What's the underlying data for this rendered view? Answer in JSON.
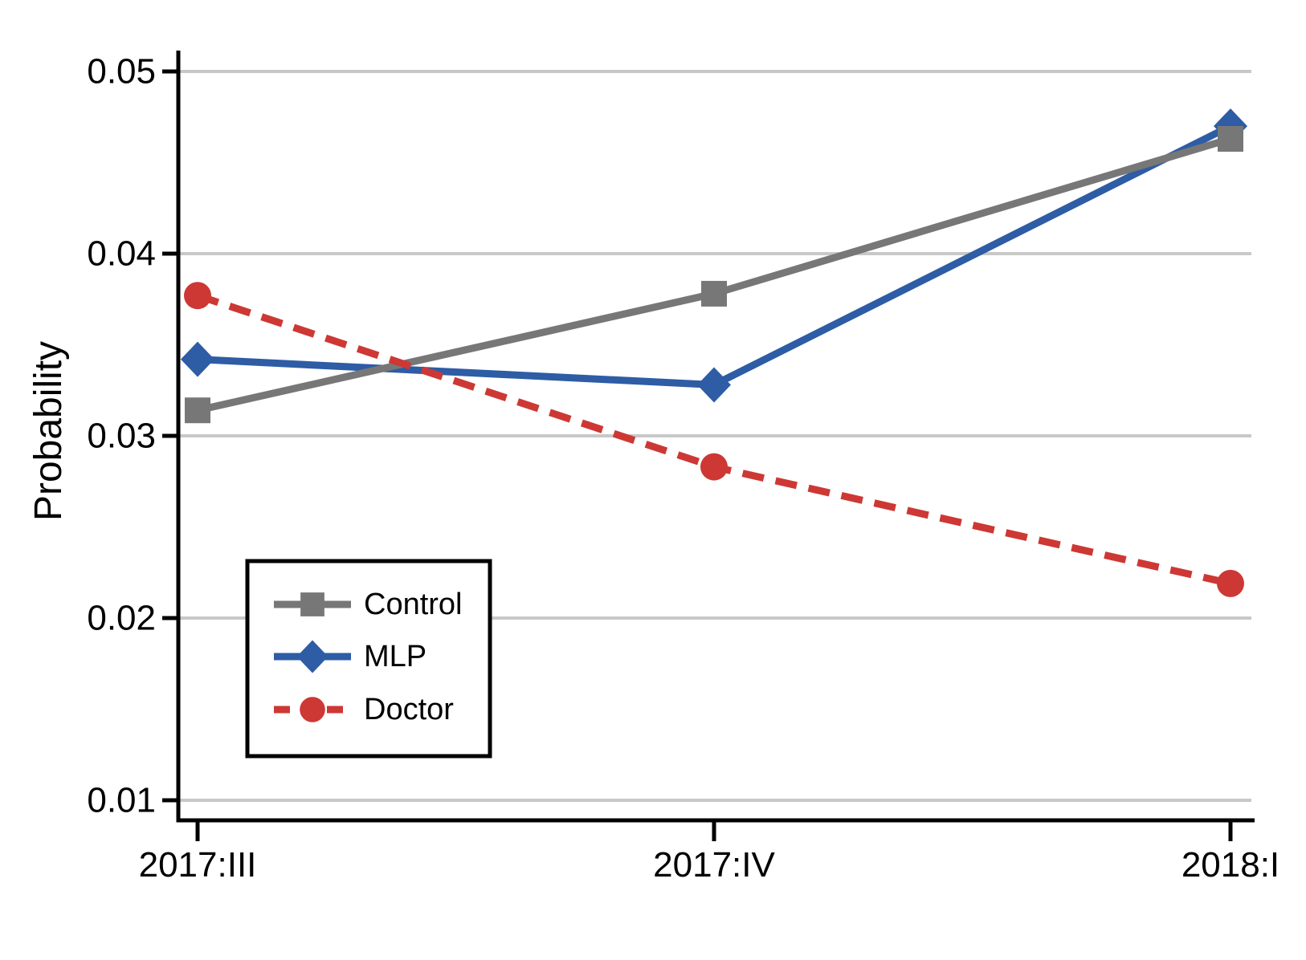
{
  "chart_data": {
    "type": "line",
    "title": "",
    "xlabel": "",
    "ylabel": "Probability",
    "categories": [
      "2017:III",
      "2017:IV",
      "2018:I"
    ],
    "series": [
      {
        "name": "Control",
        "values": [
          0.0314,
          0.0378,
          0.0463
        ],
        "color": "#777777",
        "marker": "square",
        "line_style": "solid"
      },
      {
        "name": "MLP",
        "values": [
          0.0342,
          0.0328,
          0.047
        ],
        "color": "#2e5ca5",
        "marker": "diamond",
        "line_style": "solid"
      },
      {
        "name": "Doctor",
        "values": [
          0.0377,
          0.0283,
          0.0219
        ],
        "color": "#cd3834",
        "marker": "circle",
        "line_style": "dashed"
      }
    ],
    "yticks": [
      0.01,
      0.02,
      0.03,
      0.04,
      0.05
    ],
    "ytick_labels": [
      "0.01",
      "0.02",
      "0.03",
      "0.04",
      "0.05"
    ],
    "xtick_labels": [
      "2017:III",
      "2017:IV",
      "2018:I"
    ],
    "ylim": [
      0.009,
      0.051
    ],
    "grid": true,
    "gridline_color": "#c8c8c8",
    "axis_color": "#000000",
    "text_color": "#000000",
    "background": "#ffffff",
    "legend": {
      "position": "lower-left",
      "entries": [
        "Control",
        "MLP",
        "Doctor"
      ]
    },
    "draw_order": [
      "MLP",
      "Control",
      "Doctor"
    ]
  }
}
